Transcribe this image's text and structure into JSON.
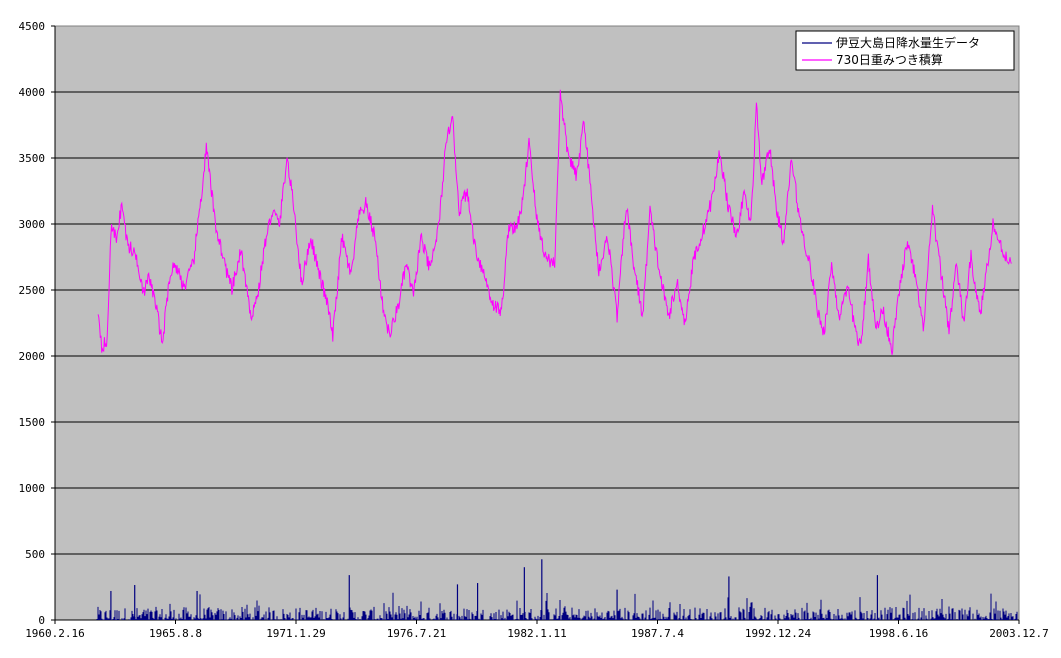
{
  "chart_data": {
    "type": "line",
    "title": "",
    "xlabel": "",
    "ylabel": "",
    "ylim": [
      0,
      4500
    ],
    "yticks": [
      0,
      500,
      1000,
      1500,
      2000,
      2500,
      3000,
      3500,
      4000,
      4500
    ],
    "xlim": [
      "1960-02-16",
      "2003-12-07"
    ],
    "xtick_labels": [
      "1960.2.16",
      "1965.8.8",
      "1971.1.29",
      "1976.7.21",
      "1982.1.11",
      "1987.7.4",
      "1992.12.24",
      "1998.6.16",
      "2003.12.7"
    ],
    "xtick_dates": [
      "1960-02-16",
      "1965-08-08",
      "1971-01-29",
      "1976-07-21",
      "1982-01-11",
      "1987-07-04",
      "1992-12-24",
      "1998-06-16",
      "2003-12-07"
    ],
    "plot_background": "#c0c0c0",
    "grid": "horizontal",
    "legend_position": "top-right",
    "series": [
      {
        "name": "伊豆大島日降水量生データ",
        "color": "#000080",
        "style": "bars",
        "approx_daily_range": [
          0,
          100
        ],
        "notable_peaks": [
          {
            "date": "1962-09-01",
            "value": 220
          },
          {
            "date": "1963-10-01",
            "value": 265
          },
          {
            "date": "1966-08-01",
            "value": 220
          },
          {
            "date": "1973-07-01",
            "value": 340
          },
          {
            "date": "1978-06-01",
            "value": 270
          },
          {
            "date": "1979-05-01",
            "value": 280
          },
          {
            "date": "1981-06-15",
            "value": 400
          },
          {
            "date": "1982-04-01",
            "value": 460
          },
          {
            "date": "1985-09-01",
            "value": 230
          },
          {
            "date": "1990-10-01",
            "value": 330
          },
          {
            "date": "1997-07-01",
            "value": 340
          }
        ]
      },
      {
        "name": "730日重みつき積算",
        "color": "#ff00ff",
        "style": "line",
        "points": [
          [
            "1962-02-01",
            2350
          ],
          [
            "1962-04-01",
            2080
          ],
          [
            "1962-07-01",
            2100
          ],
          [
            "1962-09-01",
            2960
          ],
          [
            "1962-12-01",
            2900
          ],
          [
            "1963-03-01",
            3150
          ],
          [
            "1963-06-01",
            2850
          ],
          [
            "1963-11-01",
            2750
          ],
          [
            "1964-03-01",
            2480
          ],
          [
            "1964-06-01",
            2600
          ],
          [
            "1964-10-01",
            2350
          ],
          [
            "1965-01-01",
            2090
          ],
          [
            "1965-05-01",
            2600
          ],
          [
            "1965-08-01",
            2700
          ],
          [
            "1966-01-01",
            2520
          ],
          [
            "1966-06-01",
            2700
          ],
          [
            "1966-11-01",
            3300
          ],
          [
            "1967-01-01",
            3580
          ],
          [
            "1967-06-01",
            3000
          ],
          [
            "1967-11-01",
            2700
          ],
          [
            "1968-03-01",
            2500
          ],
          [
            "1968-08-01",
            2800
          ],
          [
            "1969-01-01",
            2300
          ],
          [
            "1969-05-01",
            2450
          ],
          [
            "1969-09-01",
            2850
          ],
          [
            "1970-01-01",
            3100
          ],
          [
            "1970-05-01",
            3000
          ],
          [
            "1970-09-01",
            3500
          ],
          [
            "1971-01-01",
            3100
          ],
          [
            "1971-05-01",
            2550
          ],
          [
            "1971-10-01",
            2900
          ],
          [
            "1972-03-01",
            2600
          ],
          [
            "1972-07-01",
            2400
          ],
          [
            "1972-10-01",
            2150
          ],
          [
            "1973-03-01",
            2900
          ],
          [
            "1973-08-01",
            2600
          ],
          [
            "1973-12-01",
            3050
          ],
          [
            "1974-04-01",
            3150
          ],
          [
            "1974-09-01",
            2900
          ],
          [
            "1975-01-01",
            2400
          ],
          [
            "1975-05-01",
            2150
          ],
          [
            "1975-10-01",
            2400
          ],
          [
            "1976-02-01",
            2700
          ],
          [
            "1976-06-01",
            2450
          ],
          [
            "1976-10-01",
            2900
          ],
          [
            "1977-03-01",
            2650
          ],
          [
            "1977-08-01",
            3000
          ],
          [
            "1977-11-01",
            3500
          ],
          [
            "1978-03-01",
            3850
          ],
          [
            "1978-07-01",
            3100
          ],
          [
            "1978-11-01",
            3250
          ],
          [
            "1979-04-01",
            2800
          ],
          [
            "1979-09-01",
            2600
          ],
          [
            "1980-01-01",
            2400
          ],
          [
            "1980-06-01",
            2330
          ],
          [
            "1980-10-01",
            3000
          ],
          [
            "1981-02-01",
            2950
          ],
          [
            "1981-06-01",
            3200
          ],
          [
            "1981-09-01",
            3650
          ],
          [
            "1982-01-01",
            3050
          ],
          [
            "1982-06-01",
            2750
          ],
          [
            "1982-11-01",
            2700
          ],
          [
            "1983-02-01",
            3980
          ],
          [
            "1983-06-01",
            3550
          ],
          [
            "1983-11-01",
            3350
          ],
          [
            "1984-03-01",
            3800
          ],
          [
            "1984-07-01",
            3200
          ],
          [
            "1984-11-01",
            2650
          ],
          [
            "1985-04-01",
            2900
          ],
          [
            "1985-09-01",
            2300
          ],
          [
            "1986-02-01",
            3150
          ],
          [
            "1986-06-01",
            2700
          ],
          [
            "1986-11-01",
            2300
          ],
          [
            "1987-03-01",
            3100
          ],
          [
            "1987-08-01",
            2650
          ],
          [
            "1988-01-01",
            2300
          ],
          [
            "1988-06-01",
            2550
          ],
          [
            "1988-10-01",
            2250
          ],
          [
            "1989-03-01",
            2750
          ],
          [
            "1989-07-01",
            2900
          ],
          [
            "1990-01-01",
            3200
          ],
          [
            "1990-05-01",
            3550
          ],
          [
            "1990-10-01",
            3100
          ],
          [
            "1991-03-01",
            2900
          ],
          [
            "1991-06-01",
            3250
          ],
          [
            "1991-10-01",
            3000
          ],
          [
            "1992-01-01",
            3900
          ],
          [
            "1992-04-01",
            3300
          ],
          [
            "1992-08-01",
            3600
          ],
          [
            "1992-12-01",
            3100
          ],
          [
            "1993-04-01",
            2850
          ],
          [
            "1993-08-01",
            3500
          ],
          [
            "1994-01-01",
            3000
          ],
          [
            "1994-06-01",
            2700
          ],
          [
            "1994-11-01",
            2300
          ],
          [
            "1995-02-01",
            2180
          ],
          [
            "1995-06-01",
            2700
          ],
          [
            "1995-10-01",
            2300
          ],
          [
            "1996-03-01",
            2500
          ],
          [
            "1996-07-01",
            2200
          ],
          [
            "1996-10-01",
            2050
          ],
          [
            "1997-02-01",
            2750
          ],
          [
            "1997-06-01",
            2200
          ],
          [
            "1997-10-01",
            2350
          ],
          [
            "1998-03-01",
            2050
          ],
          [
            "1998-07-01",
            2500
          ],
          [
            "1998-11-01",
            2850
          ],
          [
            "1999-03-01",
            2650
          ],
          [
            "1999-08-01",
            2200
          ],
          [
            "2000-01-01",
            3100
          ],
          [
            "2000-05-01",
            2700
          ],
          [
            "2000-10-01",
            2200
          ],
          [
            "2001-02-01",
            2700
          ],
          [
            "2001-06-01",
            2250
          ],
          [
            "2001-10-01",
            2750
          ],
          [
            "2002-03-01",
            2300
          ],
          [
            "2002-07-01",
            2700
          ],
          [
            "2002-10-01",
            3000
          ],
          [
            "2003-03-01",
            2800
          ],
          [
            "2003-08-01",
            2700
          ]
        ]
      }
    ]
  }
}
